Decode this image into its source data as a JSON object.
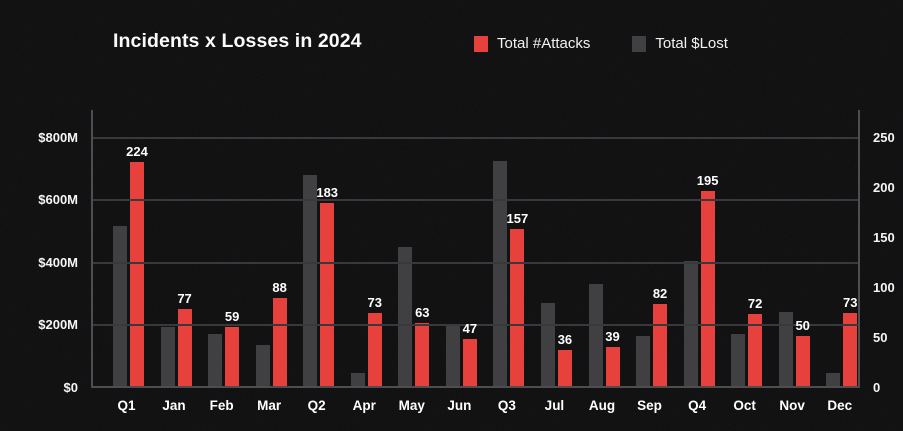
{
  "header": {
    "title": "Incidents x Losses in 2024"
  },
  "legend": [
    {
      "key": "attacks",
      "label": "Total #Attacks",
      "color": "#e6413c"
    },
    {
      "key": "lost",
      "label": "Total $Lost",
      "color": "#404043"
    }
  ],
  "chart_data": {
    "type": "bar",
    "title": "Incidents x Losses in 2024",
    "categories": [
      "Q1",
      "Jan",
      "Feb",
      "Mar",
      "Q2",
      "Apr",
      "May",
      "Jun",
      "Q3",
      "Jul",
      "Aug",
      "Sep",
      "Q4",
      "Oct",
      "Nov",
      "Dec"
    ],
    "series": [
      {
        "name": "Total #Attacks",
        "axis": "right",
        "color": "#e6413c",
        "values": [
          224,
          77,
          59,
          88,
          183,
          73,
          63,
          47,
          157,
          36,
          39,
          82,
          195,
          72,
          50,
          73
        ],
        "data_labels_shown": true
      },
      {
        "name": "Total $Lost",
        "axis": "left",
        "color": "#404043",
        "unit": "$M",
        "values_estimated": true,
        "values": [
          510,
          190,
          165,
          130,
          675,
          40,
          445,
          195,
          720,
          265,
          325,
          160,
          400,
          165,
          235,
          40
        ],
        "data_labels_shown": false
      }
    ],
    "left_axis": {
      "tick_labels": [
        "$800M",
        "$600M",
        "$400M",
        "$200M",
        "$0"
      ],
      "tick_values": [
        800,
        600,
        400,
        200,
        0
      ],
      "range": [
        0,
        888
      ]
    },
    "right_axis": {
      "tick_labels": [
        "250",
        "200",
        "150",
        "100",
        "50",
        "0"
      ],
      "tick_values": [
        250,
        200,
        150,
        100,
        50,
        0
      ],
      "range": [
        0,
        277.5
      ]
    },
    "grid": "horizontal",
    "legend_position": "top",
    "colors": {
      "background": "#0d0d0e",
      "gridline": "#39393b",
      "axis_line": "#4e4e50",
      "text": "#f5f5f5"
    }
  }
}
